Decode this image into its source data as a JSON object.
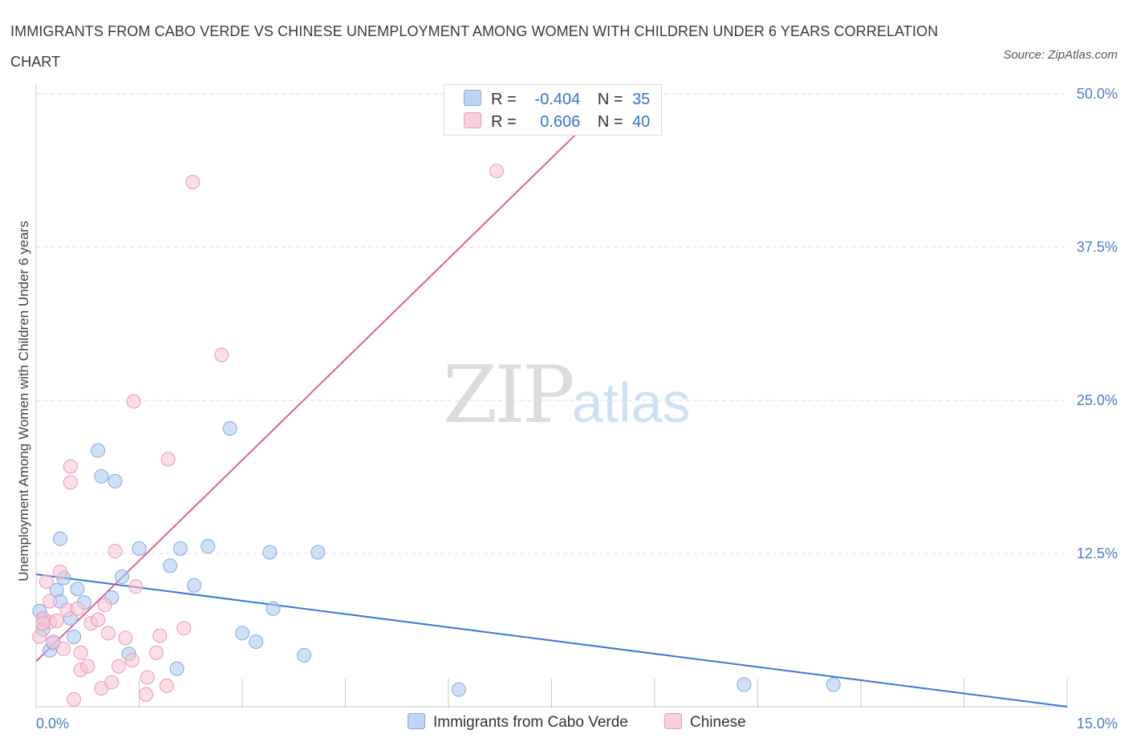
{
  "title": "IMMIGRANTS FROM CABO VERDE VS CHINESE UNEMPLOYMENT AMONG WOMEN WITH CHILDREN UNDER 6 YEARS CORRELATION CHART",
  "source": "Source: ZipAtlas.com",
  "watermark": {
    "zip": "ZIP",
    "atlas": "atlas"
  },
  "legend": {
    "rows": [
      {
        "r_label": "R =",
        "r_value": "-0.404",
        "n_label": "N =",
        "n_value": "35"
      },
      {
        "r_label": "R =",
        "r_value": "0.606",
        "n_label": "N =",
        "n_value": "40"
      }
    ]
  },
  "chart_data": {
    "type": "scatter",
    "title": "IMMIGRANTS FROM CABO VERDE VS CHINESE UNEMPLOYMENT AMONG WOMEN WITH CHILDREN UNDER 6 YEARS CORRELATION CHART",
    "xlabel": "",
    "ylabel": "Unemployment Among Women with Children Under 6 years",
    "xlim": [
      0,
      15
    ],
    "ylim": [
      0,
      50
    ],
    "x_tick_labels": [
      "0.0%",
      "15.0%"
    ],
    "y_ticks": [
      12.5,
      25.0,
      37.5,
      50.0
    ],
    "y_tick_labels": [
      "12.5%",
      "25.0%",
      "37.5%",
      "50.0%"
    ],
    "grid": true,
    "legend_position": "bottom-center",
    "series": [
      {
        "name": "Immigrants from Cabo Verde",
        "color": "#a9c8f0",
        "stroke": "#7faae6",
        "line_color": "#3a78d6",
        "R": -0.404,
        "N": 35,
        "trend": {
          "x0": 0,
          "y0": 10.8,
          "x1": 15,
          "y1": 0
        },
        "points": [
          [
            0.05,
            7.8
          ],
          [
            0.1,
            7.2
          ],
          [
            0.1,
            6.3
          ],
          [
            0.2,
            4.6
          ],
          [
            0.25,
            5.2
          ],
          [
            0.3,
            9.5
          ],
          [
            0.35,
            8.6
          ],
          [
            0.35,
            13.7
          ],
          [
            0.4,
            10.5
          ],
          [
            0.5,
            7.2
          ],
          [
            0.55,
            5.7
          ],
          [
            0.6,
            9.6
          ],
          [
            0.7,
            8.5
          ],
          [
            0.9,
            20.9
          ],
          [
            0.95,
            18.8
          ],
          [
            1.1,
            8.9
          ],
          [
            1.15,
            18.4
          ],
          [
            1.25,
            10.6
          ],
          [
            1.35,
            4.3
          ],
          [
            1.5,
            12.9
          ],
          [
            1.95,
            11.5
          ],
          [
            2.05,
            3.1
          ],
          [
            2.1,
            12.9
          ],
          [
            2.3,
            9.9
          ],
          [
            2.5,
            13.1
          ],
          [
            2.82,
            22.7
          ],
          [
            3.0,
            6.0
          ],
          [
            3.2,
            5.3
          ],
          [
            3.4,
            12.6
          ],
          [
            3.45,
            8.0
          ],
          [
            3.9,
            4.2
          ],
          [
            4.1,
            12.6
          ],
          [
            6.15,
            1.4
          ],
          [
            10.3,
            1.8
          ],
          [
            11.6,
            1.8
          ]
        ]
      },
      {
        "name": "Chinese",
        "color": "#f7c3d3",
        "stroke": "#ec9ab5",
        "line_color": "#e0608c",
        "R": 0.606,
        "N": 40,
        "trend": {
          "x0": 0,
          "y0": 3.7,
          "x1": 8.0,
          "y1": 47.5
        },
        "points": [
          [
            0.05,
            5.7
          ],
          [
            0.1,
            7.2
          ],
          [
            0.15,
            10.2
          ],
          [
            0.2,
            6.9
          ],
          [
            0.2,
            8.6
          ],
          [
            0.25,
            5.3
          ],
          [
            0.35,
            11.0
          ],
          [
            0.4,
            4.7
          ],
          [
            0.45,
            7.9
          ],
          [
            0.5,
            19.6
          ],
          [
            0.5,
            18.3
          ],
          [
            0.55,
            0.6
          ],
          [
            0.6,
            8.0
          ],
          [
            0.65,
            3.0
          ],
          [
            0.65,
            4.4
          ],
          [
            0.75,
            3.3
          ],
          [
            0.8,
            6.8
          ],
          [
            0.9,
            7.1
          ],
          [
            0.95,
            1.5
          ],
          [
            1.0,
            8.3
          ],
          [
            1.05,
            6.0
          ],
          [
            1.1,
            2.0
          ],
          [
            1.15,
            12.7
          ],
          [
            1.2,
            3.3
          ],
          [
            1.3,
            5.6
          ],
          [
            1.4,
            3.8
          ],
          [
            1.42,
            24.9
          ],
          [
            1.45,
            9.8
          ],
          [
            1.6,
            1.0
          ],
          [
            1.62,
            2.4
          ],
          [
            1.75,
            4.4
          ],
          [
            1.8,
            5.8
          ],
          [
            1.9,
            1.7
          ],
          [
            1.92,
            20.2
          ],
          [
            2.15,
            6.4
          ],
          [
            2.28,
            42.8
          ],
          [
            2.7,
            28.7
          ],
          [
            6.7,
            43.7
          ],
          [
            0.1,
            6.8
          ],
          [
            0.3,
            7.0
          ]
        ]
      }
    ]
  }
}
